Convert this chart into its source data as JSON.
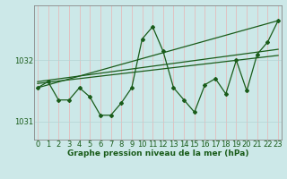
{
  "x": [
    0,
    1,
    2,
    3,
    4,
    5,
    6,
    7,
    8,
    9,
    10,
    11,
    12,
    13,
    14,
    15,
    16,
    17,
    18,
    19,
    20,
    21,
    22,
    23
  ],
  "y_main": [
    1031.55,
    1031.65,
    1031.35,
    1031.35,
    1031.55,
    1031.4,
    1031.1,
    1031.1,
    1031.3,
    1031.55,
    1032.35,
    1032.55,
    1032.15,
    1031.55,
    1031.35,
    1031.15,
    1031.6,
    1031.7,
    1031.45,
    1032.0,
    1031.5,
    1032.1,
    1032.3,
    1032.65
  ],
  "trend1_x": [
    0,
    23
  ],
  "trend1_y": [
    1031.55,
    1032.65
  ],
  "trend2_x": [
    0,
    23
  ],
  "trend2_y": [
    1031.65,
    1032.18
  ],
  "trend3_x": [
    0,
    23
  ],
  "trend3_y": [
    1031.62,
    1032.08
  ],
  "xlim": [
    -0.3,
    23.3
  ],
  "ylim": [
    1030.7,
    1032.9
  ],
  "yticks": [
    1031,
    1032
  ],
  "xticks": [
    0,
    1,
    2,
    3,
    4,
    5,
    6,
    7,
    8,
    9,
    10,
    11,
    12,
    13,
    14,
    15,
    16,
    17,
    18,
    19,
    20,
    21,
    22,
    23
  ],
  "xlabel": "Graphe pression niveau de la mer (hPa)",
  "bg_color": "#cce8e8",
  "line_color": "#1a5c1a",
  "grid_color_v": "#e8b4b4",
  "grid_color_h": "#b4d4d4",
  "tick_color": "#1a5c1a",
  "xlabel_color": "#1a5c1a",
  "spine_color": "#888888"
}
